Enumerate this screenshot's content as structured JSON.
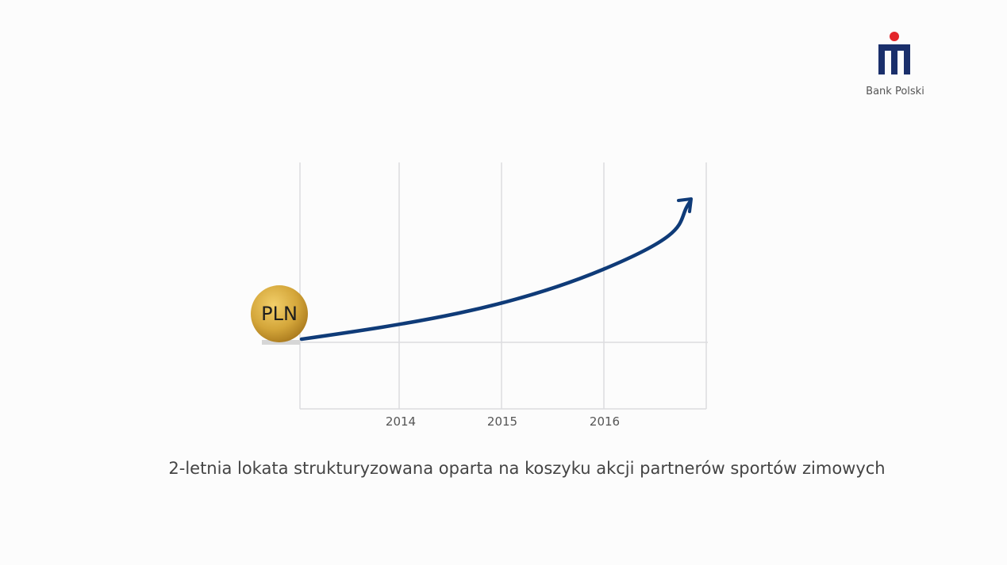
{
  "logo": {
    "text": "Bank Polski"
  },
  "coin": {
    "label": "PLN"
  },
  "axis": {
    "labels": [
      "2014",
      "2015",
      "2016"
    ]
  },
  "caption": "2-letnia lokata strukturyzowana oparta na koszyku akcji partnerów sportów zimowych"
}
